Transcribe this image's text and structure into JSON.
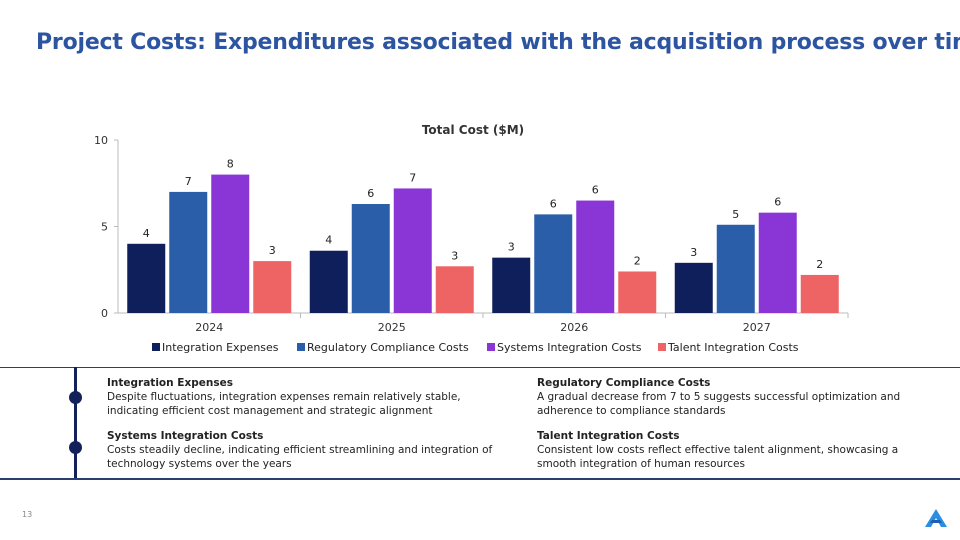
{
  "slide": {
    "title": "Project Costs: Expenditures associated with the acquisition process over time",
    "page_number": "13"
  },
  "colors": {
    "title": "#2c54a0",
    "Integration Expenses": "#0f1f5c",
    "Regulatory Compliance Costs": "#2a5ea8",
    "Systems Integration Costs": "#8a35d6",
    "Talent Integration Costs": "#ee6464"
  },
  "chart_data": {
    "type": "bar",
    "title": "Total Cost ($M)",
    "categories": [
      "2024",
      "2025",
      "2026",
      "2027"
    ],
    "series": [
      {
        "name": "Integration Expenses",
        "values": [
          4.0,
          3.6,
          3.2,
          2.9
        ],
        "labels": [
          "4",
          "4",
          "3",
          "3"
        ]
      },
      {
        "name": "Regulatory Compliance Costs",
        "values": [
          7.0,
          6.3,
          5.7,
          5.1
        ],
        "labels": [
          "7",
          "6",
          "6",
          "5"
        ]
      },
      {
        "name": "Systems Integration Costs",
        "values": [
          8.0,
          7.2,
          6.5,
          5.8
        ],
        "labels": [
          "8",
          "7",
          "6",
          "6"
        ]
      },
      {
        "name": "Talent Integration Costs",
        "values": [
          3.0,
          2.7,
          2.4,
          2.2
        ],
        "labels": [
          "3",
          "3",
          "2",
          "2"
        ]
      }
    ],
    "ylim": [
      0,
      10
    ],
    "yticks": [
      "0",
      "5",
      "10"
    ],
    "legend": "bottom",
    "grid": false
  },
  "notes": [
    {
      "heading": "Integration Expenses",
      "text": "Despite fluctuations, integration expenses remain relatively stable, indicating efficient cost management and strategic alignment"
    },
    {
      "heading": "Regulatory Compliance Costs",
      "text": "A gradual decrease from 7 to 5 suggests successful optimization and adherence to compliance standards"
    },
    {
      "heading": "Systems Integration Costs",
      "text": "Costs steadily decline, indicating efficient streamlining and integration of technology systems over the years"
    },
    {
      "heading": "Talent Integration Costs",
      "text": "Consistent low costs reflect effective talent alignment, showcasing a smooth integration of human resources"
    }
  ],
  "icons": {
    "logo": "company-logo-icon",
    "timeline_markers": "timeline-dot"
  }
}
